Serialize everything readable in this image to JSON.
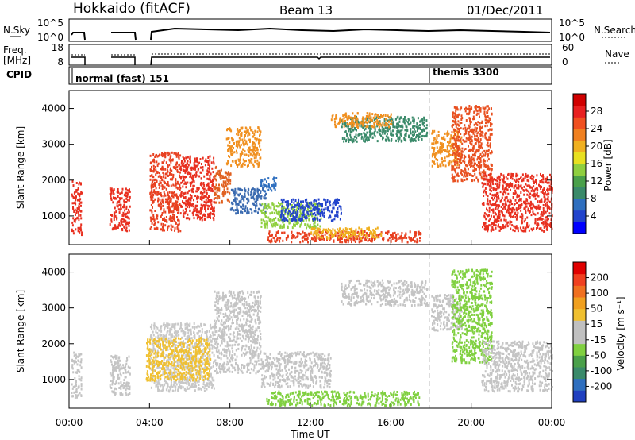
{
  "header": {
    "station": "Hokkaido (fitACF)",
    "beam": "Beam 13",
    "date": "01/Dec/2011"
  },
  "top_panels": {
    "nsky": {
      "left_label": "N.Sky",
      "right_label": "N.Search",
      "ticks": [
        "10^5",
        "10^0"
      ],
      "right_ticks": [
        "10^5",
        "10^0"
      ]
    },
    "freq": {
      "left_label_1": "Freq.",
      "left_label_2": "[MHz]",
      "ticks": [
        "18",
        "8"
      ],
      "right_ticks": [
        "60",
        "0"
      ],
      "right_label": "Nave"
    },
    "cpid": {
      "label": "CPID",
      "mode_1": "normal (fast) 151",
      "mode_2": "themis 3300",
      "switch_hour": 18
    }
  },
  "colorbars": {
    "power": {
      "label": "Power [dB]",
      "ticks": [
        "28",
        "24",
        "20",
        "16",
        "12",
        "8",
        "4"
      ],
      "colors": [
        "#0000ff",
        "#2244cc",
        "#2f6fbf",
        "#3a8a6a",
        "#4aa04a",
        "#8fcf3f",
        "#e8e020",
        "#f0b020",
        "#f08020",
        "#f05020",
        "#e82020",
        "#d00000"
      ]
    },
    "velocity": {
      "label": "Velocity [m s⁻¹]",
      "ticks": [
        "200",
        "100",
        "50",
        "15",
        "-15",
        "-50",
        "-100",
        "-200"
      ],
      "colors": [
        "#2040c0",
        "#2f6fbf",
        "#3a8a6a",
        "#4aa04a",
        "#80d040",
        "#c0c0c0",
        "#c0c0c0",
        "#f0c030",
        "#f0a020",
        "#f07020",
        "#f04020",
        "#e00000"
      ]
    }
  },
  "chart_data": [
    {
      "type": "heatmap",
      "panel": "power",
      "ylabel": "Slant Range [km]",
      "xlabel": "Time UT",
      "ylim": [
        200,
        4500
      ],
      "xlim": [
        0,
        24
      ],
      "yticks": [
        "1000",
        "2000",
        "3000",
        "4000"
      ],
      "xticks": [
        "00:00",
        "04:00",
        "08:00",
        "12:00",
        "16:00",
        "20:00",
        "00:00"
      ],
      "regions": [
        {
          "t0": 0.1,
          "t1": 0.6,
          "r0": 500,
          "r1": 2000,
          "c": "#e83020"
        },
        {
          "t0": 2.0,
          "t1": 3.0,
          "r0": 600,
          "r1": 1800,
          "c": "#e83020"
        },
        {
          "t0": 4.0,
          "t1": 5.5,
          "r0": 600,
          "r1": 2800,
          "c": "#e84020"
        },
        {
          "t0": 5.5,
          "t1": 7.2,
          "r0": 900,
          "r1": 2700,
          "c": "#e83020"
        },
        {
          "t0": 7.2,
          "t1": 8.0,
          "r0": 1400,
          "r1": 2400,
          "c": "#e06020"
        },
        {
          "t0": 7.8,
          "t1": 9.5,
          "r0": 2400,
          "r1": 3500,
          "c": "#f09020"
        },
        {
          "t0": 8.0,
          "t1": 9.8,
          "r0": 1100,
          "r1": 1800,
          "c": "#3a6ab0"
        },
        {
          "t0": 9.5,
          "t1": 10.3,
          "r0": 1700,
          "r1": 2100,
          "c": "#2f6fbf"
        },
        {
          "t0": 9.5,
          "t1": 12.5,
          "r0": 700,
          "r1": 1400,
          "c": "#8fcf3f"
        },
        {
          "t0": 10.5,
          "t1": 13.5,
          "r0": 900,
          "r1": 1500,
          "c": "#2244cc"
        },
        {
          "t0": 9.8,
          "t1": 17.5,
          "r0": 300,
          "r1": 600,
          "c": "#e84020"
        },
        {
          "t0": 12.0,
          "t1": 15.5,
          "r0": 400,
          "r1": 700,
          "c": "#f0b020"
        },
        {
          "t0": 13.5,
          "t1": 17.8,
          "r0": 3100,
          "r1": 3800,
          "c": "#3a8a6a"
        },
        {
          "t0": 13.0,
          "t1": 16.0,
          "r0": 3500,
          "r1": 3900,
          "c": "#f09020"
        },
        {
          "t0": 18.0,
          "t1": 19.5,
          "r0": 2400,
          "r1": 3400,
          "c": "#f09020"
        },
        {
          "t0": 19.0,
          "t1": 21.0,
          "r0": 2000,
          "r1": 4100,
          "c": "#e85020"
        },
        {
          "t0": 20.5,
          "t1": 24.0,
          "r0": 600,
          "r1": 2200,
          "c": "#e83020"
        }
      ]
    },
    {
      "type": "heatmap",
      "panel": "velocity",
      "ylabel": "Slant Range [km]",
      "xlabel": "Time UT",
      "ylim": [
        200,
        4500
      ],
      "xlim": [
        0,
        24
      ],
      "yticks": [
        "1000",
        "2000",
        "3000",
        "4000"
      ],
      "xticks": [
        "00:00",
        "04:00",
        "08:00",
        "12:00",
        "16:00",
        "20:00",
        "00:00"
      ],
      "regions": [
        {
          "t0": 0.1,
          "t1": 0.6,
          "r0": 500,
          "r1": 1800,
          "c": "#c4c4c4"
        },
        {
          "t0": 2.0,
          "t1": 3.0,
          "r0": 600,
          "r1": 1700,
          "c": "#c4c4c4"
        },
        {
          "t0": 4.0,
          "t1": 7.2,
          "r0": 700,
          "r1": 2600,
          "c": "#c8c8c8"
        },
        {
          "t0": 7.2,
          "t1": 9.5,
          "r0": 1200,
          "r1": 3500,
          "c": "#c4c4c4"
        },
        {
          "t0": 9.5,
          "t1": 13.0,
          "r0": 800,
          "r1": 1800,
          "c": "#c4c4c4"
        },
        {
          "t0": 9.8,
          "t1": 17.5,
          "r0": 300,
          "r1": 700,
          "c": "#80d040"
        },
        {
          "t0": 13.5,
          "t1": 17.8,
          "r0": 3100,
          "r1": 3800,
          "c": "#c4c4c4"
        },
        {
          "t0": 18.0,
          "t1": 19.5,
          "r0": 2400,
          "r1": 3400,
          "c": "#c4c4c4"
        },
        {
          "t0": 19.0,
          "t1": 21.0,
          "r0": 1500,
          "r1": 4100,
          "c": "#80d040"
        },
        {
          "t0": 20.5,
          "t1": 24.0,
          "r0": 700,
          "r1": 2100,
          "c": "#c4c4c4"
        },
        {
          "t0": 3.8,
          "t1": 7.0,
          "r0": 1000,
          "r1": 2200,
          "c": "#f0c030"
        }
      ]
    }
  ]
}
